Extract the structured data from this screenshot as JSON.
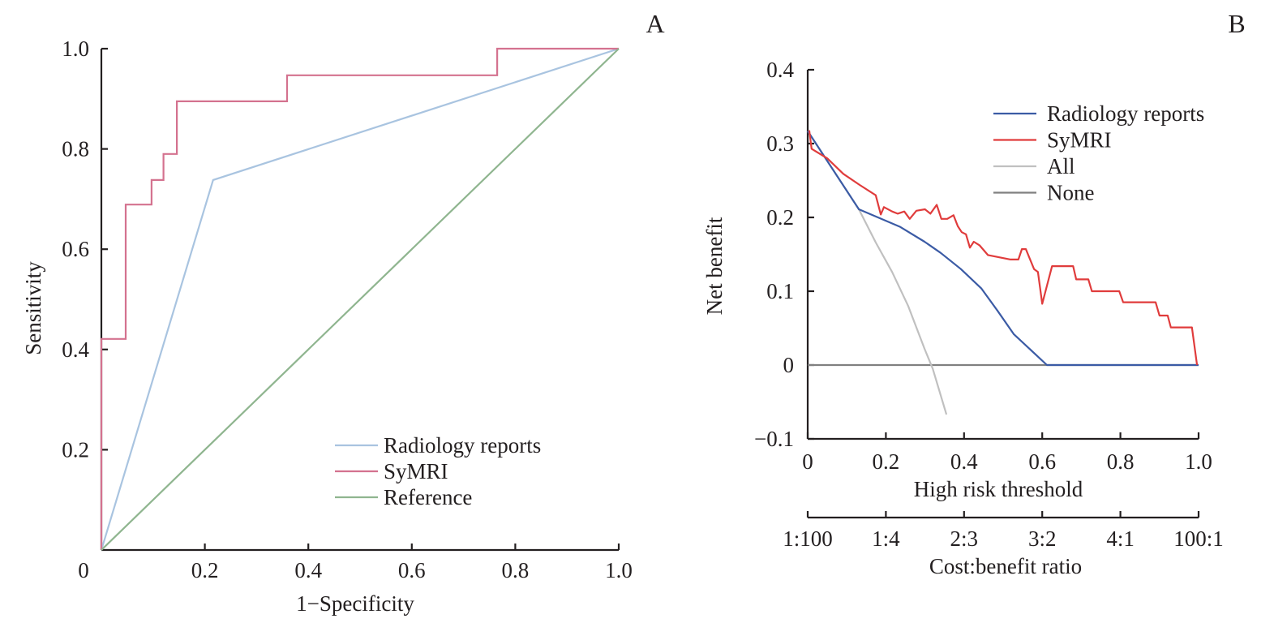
{
  "chart_data": [
    {
      "type": "line",
      "panel_label": "A",
      "title": "",
      "xlabel": "1−Specificity",
      "ylabel": "Sensitivity",
      "xlim": [
        0,
        1.0
      ],
      "ylim": [
        0,
        1.0
      ],
      "x_ticks": [
        0.2,
        0.4,
        0.6,
        0.8,
        1.0
      ],
      "x_tick_labels": [
        "0.2",
        "0.4",
        "0.6",
        "0.8",
        "1.0"
      ],
      "y_ticks": [
        0.2,
        0.4,
        0.6,
        0.8,
        1.0
      ],
      "y_tick_labels": [
        "0.2",
        "0.4",
        "0.6",
        "0.8",
        "1.0"
      ],
      "origin_label": "0",
      "grid": false,
      "legend_position": "bottom-right",
      "series": [
        {
          "name": "Radiology reports",
          "color": "#a9c4e0",
          "x": [
            0,
            0.216,
            1.0
          ],
          "y": [
            0,
            0.738,
            1.0
          ]
        },
        {
          "name": "SyMRI",
          "color": "#d4728f",
          "x": [
            0,
            0,
            0.047,
            0.047,
            0.097,
            0.097,
            0.12,
            0.12,
            0.146,
            0.146,
            0.359,
            0.359,
            0.765,
            0.765,
            1.0
          ],
          "y": [
            0,
            0.421,
            0.421,
            0.689,
            0.689,
            0.738,
            0.738,
            0.79,
            0.79,
            0.895,
            0.895,
            0.947,
            0.947,
            1.0,
            1.0
          ]
        },
        {
          "name": "Reference",
          "color": "#8fb58f",
          "x": [
            0,
            1.0
          ],
          "y": [
            0,
            1.0
          ]
        }
      ]
    },
    {
      "type": "line",
      "panel_label": "B",
      "title": "",
      "xlabel": "High risk threshold",
      "ylabel": "Net benefit",
      "secondary_xlabel": "Cost:benefit ratio",
      "xlim": [
        0,
        1.0
      ],
      "ylim": [
        -0.1,
        0.4
      ],
      "x_ticks": [
        0,
        0.2,
        0.4,
        0.6,
        0.8,
        1.0
      ],
      "x_tick_labels": [
        "0",
        "0.2",
        "0.4",
        "0.6",
        "0.8",
        "1.0"
      ],
      "secondary_x_tick_labels": [
        "1:100",
        "1:4",
        "2:3",
        "3:2",
        "4:1",
        "100:1"
      ],
      "y_ticks": [
        -0.1,
        0,
        0.1,
        0.2,
        0.3,
        0.4
      ],
      "y_tick_labels": [
        "−0.1",
        "0",
        "0.1",
        "0.2",
        "0.3",
        "0.4"
      ],
      "grid": false,
      "legend_position": "top-right",
      "series": [
        {
          "name": "Radiology reports",
          "color": "#3b5ba5",
          "x": [
            0,
            0.131,
            0.237,
            0.299,
            0.34,
            0.392,
            0.444,
            0.485,
            0.527,
            0.612,
            1.0
          ],
          "y": [
            0.317,
            0.211,
            0.187,
            0.167,
            0.152,
            0.13,
            0.104,
            0.074,
            0.042,
            0,
            0
          ]
        },
        {
          "name": "SyMRI",
          "color": "#e03c3c",
          "x": [
            0.004,
            0.01,
            0.05,
            0.091,
            0.133,
            0.174,
            0.187,
            0.195,
            0.216,
            0.23,
            0.247,
            0.261,
            0.278,
            0.3,
            0.314,
            0.33,
            0.342,
            0.357,
            0.373,
            0.384,
            0.394,
            0.405,
            0.415,
            0.425,
            0.44,
            0.461,
            0.519,
            0.529,
            0.539,
            0.548,
            0.558,
            0.579,
            0.589,
            0.6,
            0.625,
            0.679,
            0.687,
            0.718,
            0.727,
            0.797,
            0.807,
            0.89,
            0.9,
            0.921,
            0.929,
            0.983,
            0.996
          ],
          "y": [
            0.318,
            0.293,
            0.28,
            0.259,
            0.244,
            0.23,
            0.204,
            0.214,
            0.208,
            0.205,
            0.208,
            0.198,
            0.209,
            0.211,
            0.205,
            0.217,
            0.198,
            0.198,
            0.203,
            0.188,
            0.18,
            0.177,
            0.159,
            0.167,
            0.162,
            0.149,
            0.143,
            0.143,
            0.143,
            0.157,
            0.157,
            0.13,
            0.126,
            0.083,
            0.134,
            0.134,
            0.116,
            0.116,
            0.1,
            0.1,
            0.085,
            0.085,
            0.067,
            0.067,
            0.051,
            0.051,
            0
          ]
        },
        {
          "name": "All",
          "color": "#c0c0c0",
          "x": [
            0,
            0.131,
            0.174,
            0.216,
            0.257,
            0.299,
            0.32,
            0.355
          ],
          "y": [
            0.317,
            0.211,
            0.166,
            0.126,
            0.08,
            0.022,
            -0.005,
            -0.067
          ]
        },
        {
          "name": "None",
          "color": "#808080",
          "x": [
            0,
            1.0
          ],
          "y": [
            0,
            0
          ]
        }
      ]
    }
  ]
}
